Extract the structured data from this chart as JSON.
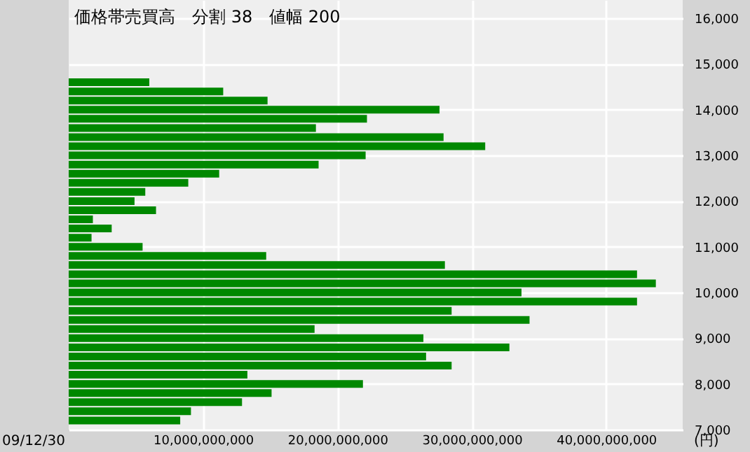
{
  "chart_data": {
    "type": "bar",
    "orientation": "horizontal",
    "title": "価格帯売買高　分割 38　値幅 200",
    "x": [
      14600,
      14400,
      14200,
      14000,
      13800,
      13600,
      13400,
      13200,
      13000,
      12800,
      12600,
      12400,
      12200,
      12000,
      11800,
      11600,
      11400,
      11200,
      11000,
      10800,
      10600,
      10400,
      10200,
      10000,
      9800,
      9600,
      9400,
      9200,
      9000,
      8800,
      8600,
      8400,
      8200,
      8000,
      7800,
      7600,
      7400,
      7200
    ],
    "series": [
      {
        "color": "#008800",
        "values": [
          6000000000.0,
          11500000000.0,
          14800000000.0,
          27600000000.0,
          22200000000.0,
          18400000000.0,
          27900000000.0,
          31000000000.0,
          22100000000.0,
          18600000000.0,
          11200000000.0,
          8900000000.0,
          5700000000.0,
          4900000000.0,
          6500000000.0,
          1800000000.0,
          3200000000.0,
          1700000000.0,
          5500000000.0,
          14700000000.0,
          28000000000.0,
          42300000000.0,
          43700000000.0,
          33700000000.0,
          42300000000.0,
          28500000000.0,
          34300000000.0,
          18300000000.0,
          26400000000.0,
          32800000000.0,
          26600000000.0,
          28500000000.0,
          13300000000.0,
          21900000000.0,
          15100000000.0,
          12900000000.0,
          9100000000.0,
          8300000000.0
        ]
      }
    ],
    "xlim": [
      0,
      45700000000.0
    ],
    "xticks": [
      {
        "value": 10000000000,
        "label": "10,000,000,000"
      },
      {
        "value": 20000000000,
        "label": "20,000,000,000"
      },
      {
        "value": 30000000000,
        "label": "30,000,000,000"
      },
      {
        "value": 40000000000,
        "label": "40,000,000,000"
      }
    ],
    "ylim": [
      7000,
      16400
    ],
    "yticks": [
      {
        "value": 7000,
        "label": "7,000"
      },
      {
        "value": 8000,
        "label": "8,000"
      },
      {
        "value": 9000,
        "label": "9,000"
      },
      {
        "value": 10000,
        "label": "10,000"
      },
      {
        "value": 11000,
        "label": "11,000"
      },
      {
        "value": 12000,
        "label": "12,000"
      },
      {
        "value": 13000,
        "label": "13,000"
      },
      {
        "value": 14000,
        "label": "14,000"
      },
      {
        "value": 15000,
        "label": "15,000"
      },
      {
        "value": 16000,
        "label": "16,000"
      }
    ],
    "grid": true,
    "annotations": [
      "09/12/30",
      "(円)"
    ]
  }
}
